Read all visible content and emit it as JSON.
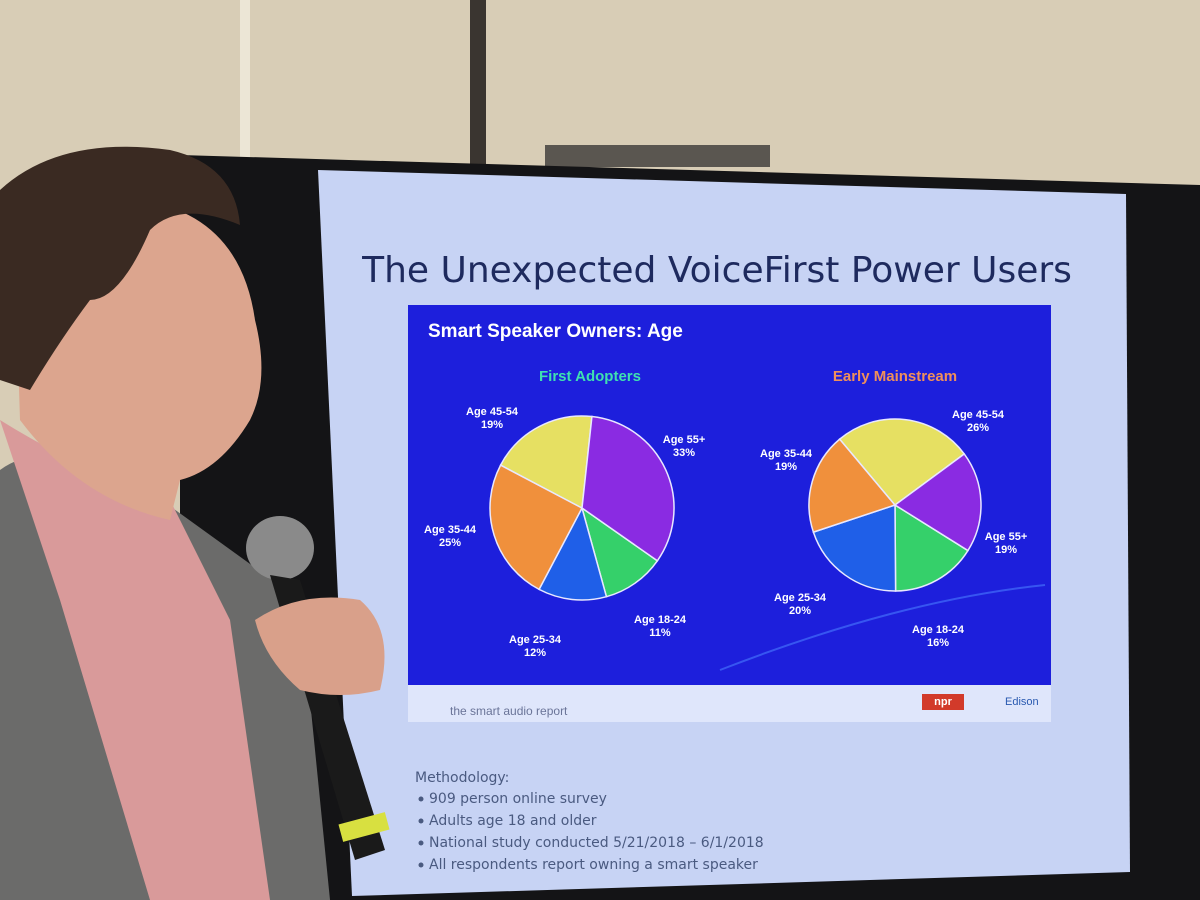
{
  "slide": {
    "title": "The Unexpected VoiceFirst Power Users",
    "panel_title": "Smart Speaker Owners: Age",
    "logos": {
      "smart_audio": "the smart audio report",
      "npr": "npr",
      "edison": "Edison"
    },
    "methodology": {
      "heading": "Methodology:",
      "bullets": [
        "909 person online survey",
        "Adults age 18 and older",
        "National study conducted 5/21/2018 – 6/1/2018",
        "All respondents report owning a smart speaker"
      ]
    }
  },
  "chart_data": [
    {
      "type": "pie",
      "title": "First Adopters",
      "title_color": "#3fe0b0",
      "categories": [
        "Age 18-24",
        "Age 25-34",
        "Age 35-44",
        "Age 45-54",
        "Age 55+"
      ],
      "values": [
        11,
        12,
        25,
        19,
        33
      ],
      "value_labels": [
        "11%",
        "12%",
        "25%",
        "19%",
        "33%"
      ],
      "colors": [
        "#35d06a",
        "#1f5fe8",
        "#f0903c",
        "#e6e062",
        "#8a2be2"
      ]
    },
    {
      "type": "pie",
      "title": "Early Mainstream",
      "title_color": "#f0905a",
      "categories": [
        "Age 18-24",
        "Age 25-34",
        "Age 35-44",
        "Age 45-54",
        "Age 55+"
      ],
      "values": [
        16,
        20,
        19,
        26,
        19
      ],
      "value_labels": [
        "16%",
        "20%",
        "19%",
        "26%",
        "19%"
      ],
      "colors": [
        "#35d06a",
        "#1f5fe8",
        "#f0903c",
        "#e6e062",
        "#8a2be2"
      ]
    }
  ]
}
